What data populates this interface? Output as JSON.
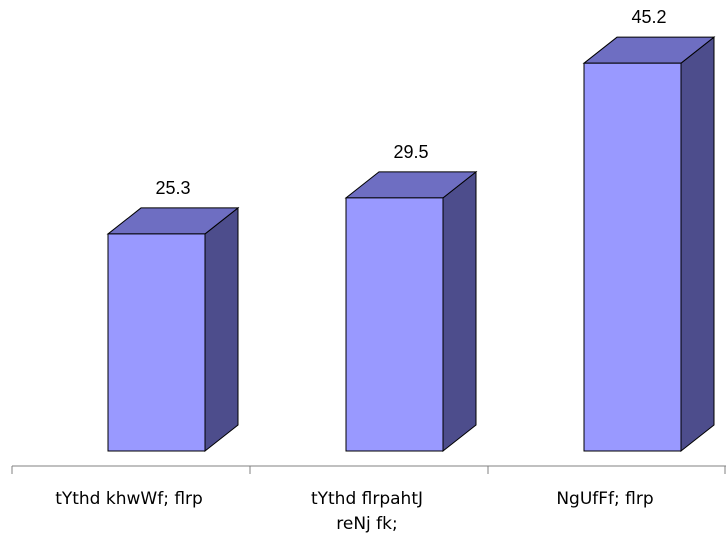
{
  "chart_data": {
    "type": "bar",
    "style": "3d-column",
    "title": "",
    "xlabel": "",
    "ylabel": "",
    "categories": [
      [
        "tYthd khwWf; flrp"
      ],
      [
        "tYthd flrpahtJ",
        "reNj fk;"
      ],
      [
        "NgUfFf; flrp"
      ]
    ],
    "values": [
      25.3,
      29.5,
      45.2
    ],
    "data_labels": [
      "25.3",
      "29.5",
      "45.2"
    ],
    "ylim": [
      0,
      48
    ],
    "grid": false,
    "legend": "none",
    "colors": {
      "front": "#9999FF",
      "top": "#6E6EC2",
      "side": "#4D4D8C",
      "outline": "#000000",
      "axis": "#808080"
    }
  }
}
